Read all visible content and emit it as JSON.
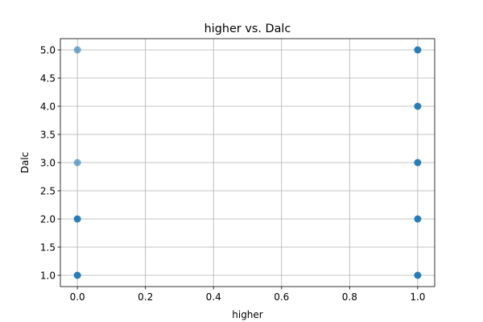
{
  "chart_data": {
    "type": "scatter",
    "title": "higher vs. Dalc",
    "xlabel": "higher",
    "ylabel": "Dalc",
    "xlim": [
      -0.05,
      1.05
    ],
    "ylim": [
      0.8,
      5.2
    ],
    "xticks": [
      0.0,
      0.2,
      0.4,
      0.6,
      0.8,
      1.0
    ],
    "xtick_labels": [
      "0.0",
      "0.2",
      "0.4",
      "0.6",
      "0.8",
      "1.0"
    ],
    "yticks": [
      1.0,
      1.5,
      2.0,
      2.5,
      3.0,
      3.5,
      4.0,
      4.5,
      5.0
    ],
    "ytick_labels": [
      "1.0",
      "1.5",
      "2.0",
      "2.5",
      "3.0",
      "3.5",
      "4.0",
      "4.5",
      "5.0"
    ],
    "grid": true,
    "color": "#1f77b4",
    "points": [
      {
        "x": 0,
        "y": 1,
        "density": "high"
      },
      {
        "x": 0,
        "y": 2,
        "density": "high"
      },
      {
        "x": 0,
        "y": 3,
        "density": "low"
      },
      {
        "x": 0,
        "y": 5,
        "density": "low"
      },
      {
        "x": 1,
        "y": 1,
        "density": "high"
      },
      {
        "x": 1,
        "y": 2,
        "density": "high"
      },
      {
        "x": 1,
        "y": 3,
        "density": "high"
      },
      {
        "x": 1,
        "y": 4,
        "density": "high"
      },
      {
        "x": 1,
        "y": 5,
        "density": "high"
      }
    ]
  }
}
